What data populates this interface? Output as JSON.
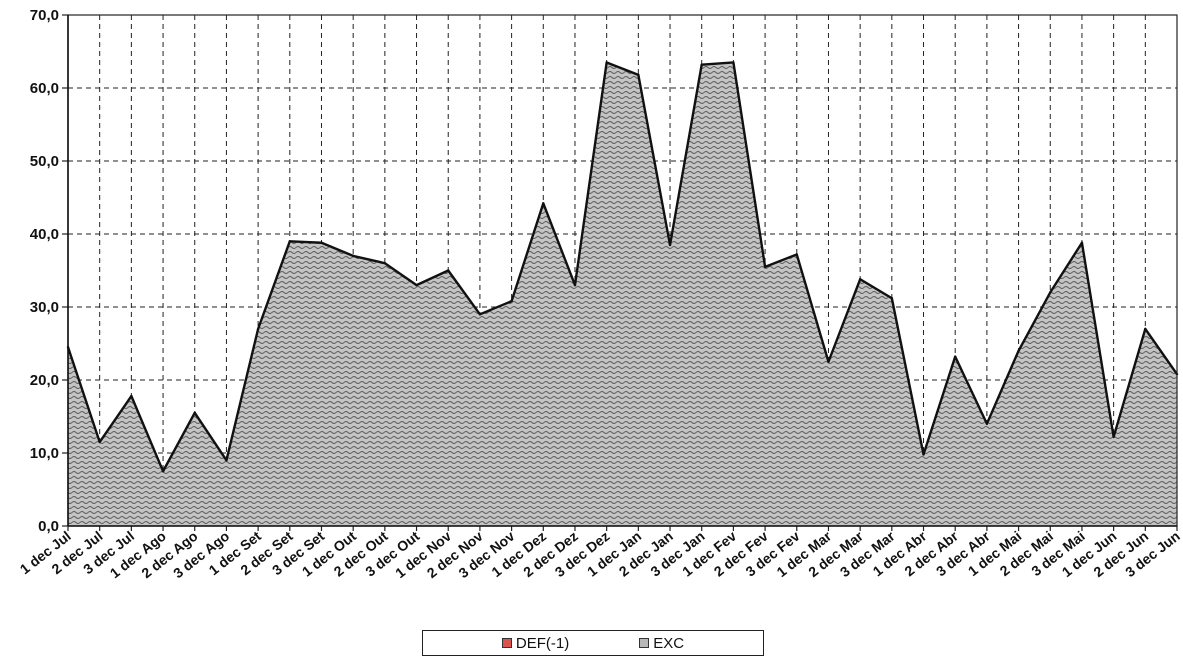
{
  "chart_data": {
    "type": "area",
    "categories": [
      "1 dec Jul",
      "2 dec Jul",
      "3 dec Jul",
      "1 dec Ago",
      "2 dec Ago",
      "3 dec Ago",
      "1 dec Set",
      "2 dec Set",
      "3 dec Set",
      "1 dec Out",
      "2 dec Out",
      "3 dec Out",
      "1 dec Nov",
      "2 dec Nov",
      "3 dec Nov",
      "1 dec Dez",
      "2 dec Dez",
      "3 dec Dez",
      "1 dec Jan",
      "2 dec Jan",
      "3 dec Jan",
      "1 dec Fev",
      "2 dec Fev",
      "3 dec Fev",
      "1 dec Mar",
      "2 dec Mar",
      "3 dec Mar",
      "1 dec Abr",
      "2 dec Abr",
      "3 dec Abr",
      "1 dec Mai",
      "2 dec Mai",
      "3 dec Mai",
      "1 dec Jun",
      "2 dec Jun",
      "3 dec Jun"
    ],
    "series": [
      {
        "name": "DEF(-1)",
        "color": "#d9534f",
        "values": [
          0,
          0,
          0,
          0,
          0,
          0,
          0,
          0,
          0,
          0,
          0,
          0,
          0,
          0,
          0,
          0,
          0,
          0,
          0,
          0,
          0,
          0,
          0,
          0,
          0,
          0,
          0,
          0,
          0,
          0,
          0,
          0,
          0,
          0,
          0,
          0
        ]
      },
      {
        "name": "EXC",
        "color": "#b8b8b8",
        "values": [
          24.5,
          11.5,
          17.8,
          7.5,
          15.5,
          9.0,
          27.0,
          39.0,
          38.8,
          37.0,
          36.0,
          33.0,
          35.0,
          29.0,
          30.8,
          44.2,
          33.0,
          63.5,
          61.8,
          38.5,
          63.2,
          63.5,
          35.5,
          37.2,
          22.5,
          33.8,
          31.2,
          9.8,
          23.2,
          14.0,
          24.0,
          32.0,
          38.8,
          12.2,
          27.0,
          20.8
        ]
      }
    ],
    "yticks": [
      "0,0",
      "10,0",
      "20,0",
      "30,0",
      "40,0",
      "50,0",
      "60,0",
      "70,0"
    ],
    "ylim": [
      0,
      70
    ],
    "grid": true,
    "legend_position": "bottom-center"
  }
}
